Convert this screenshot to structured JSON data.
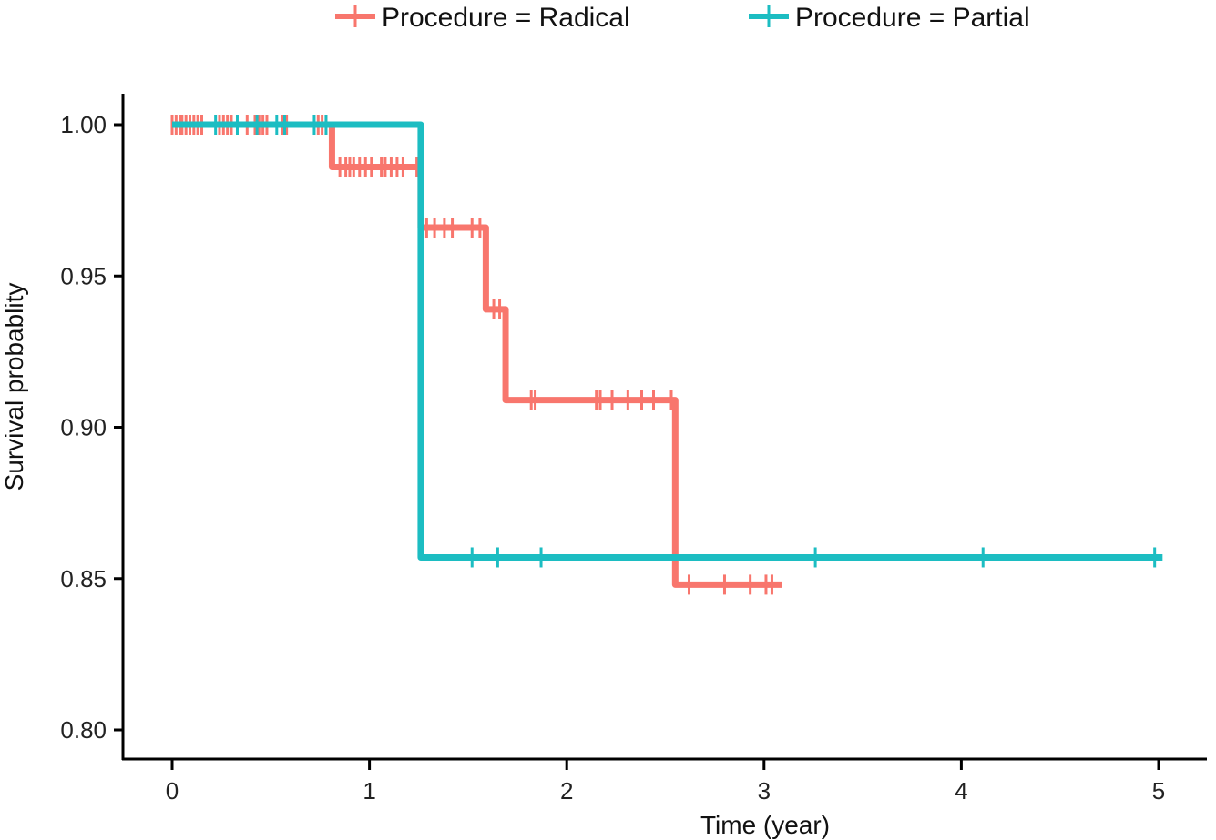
{
  "chart_data": {
    "type": "line",
    "subtype": "kaplan-meier step",
    "title": "",
    "xlabel": "Time (year)",
    "ylabel": "Survival probablity",
    "xlim": [
      -0.25,
      5.25
    ],
    "ylim": [
      0.79,
      1.01
    ],
    "x_ticks": [
      0,
      1,
      2,
      3,
      4,
      5
    ],
    "x_tick_labels": [
      "0",
      "1",
      "2",
      "3",
      "4",
      "5"
    ],
    "y_ticks": [
      0.8,
      0.85,
      0.9,
      0.95,
      1.0
    ],
    "y_tick_labels": [
      "0.80",
      "0.85",
      "0.90",
      "0.95",
      "1.00"
    ],
    "grid": false,
    "legend_position": "top",
    "series": [
      {
        "name": "Procedure = Radical",
        "color": "#F8766D",
        "steps": [
          {
            "x": 0.0,
            "y": 1.0
          },
          {
            "x": 0.81,
            "y": 0.986
          },
          {
            "x": 1.26,
            "y": 0.966
          },
          {
            "x": 1.59,
            "y": 0.939
          },
          {
            "x": 1.69,
            "y": 0.909
          },
          {
            "x": 2.55,
            "y": 0.848
          }
        ],
        "end_x": 3.09,
        "censor_times": [
          0.0,
          0.02,
          0.04,
          0.05,
          0.07,
          0.09,
          0.11,
          0.13,
          0.15,
          0.24,
          0.26,
          0.28,
          0.3,
          0.38,
          0.42,
          0.44,
          0.46,
          0.48,
          0.56,
          0.58,
          0.74,
          0.76,
          0.78,
          0.85,
          0.88,
          0.9,
          0.92,
          0.95,
          0.98,
          1.01,
          1.06,
          1.08,
          1.11,
          1.14,
          1.17,
          1.24,
          1.29,
          1.33,
          1.38,
          1.42,
          1.52,
          1.56,
          1.63,
          1.66,
          1.82,
          1.84,
          2.15,
          2.17,
          2.23,
          2.31,
          2.38,
          2.44,
          2.53,
          2.62,
          2.8,
          2.93,
          3.01,
          3.04
        ]
      },
      {
        "name": "Procedure = Partial",
        "color": "#1CBDC2",
        "steps": [
          {
            "x": 0.0,
            "y": 1.0
          },
          {
            "x": 1.26,
            "y": 0.857
          }
        ],
        "end_x": 5.02,
        "censor_times": [
          0.22,
          0.33,
          0.43,
          0.53,
          0.57,
          0.72,
          0.78,
          1.52,
          1.65,
          1.87,
          3.26,
          4.11,
          4.98
        ]
      }
    ]
  }
}
